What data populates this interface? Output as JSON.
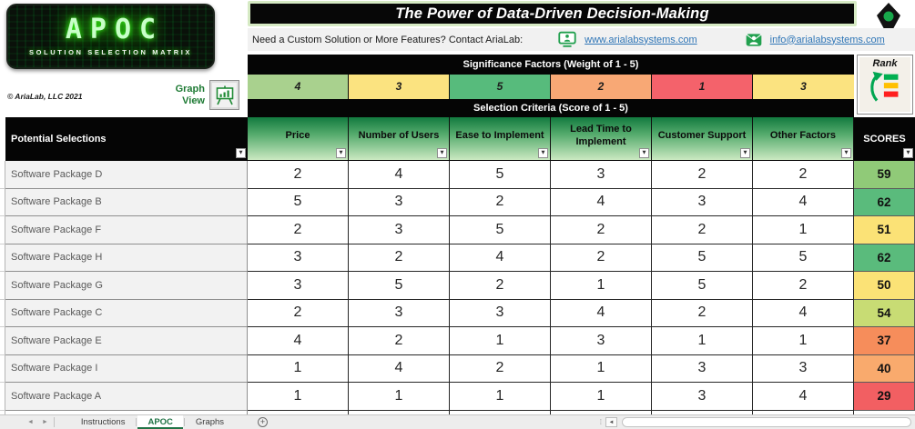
{
  "logo": {
    "title": "APOC",
    "subtitle": "SOLUTION SELECTION MATRIX"
  },
  "copyright": "© AriaLab, LLC 2021",
  "graph_view_label": "Graph View",
  "banner": {
    "title": "The Power of Data-Driven Decision-Making"
  },
  "brand": {
    "name": "AriaLab"
  },
  "contact": {
    "prompt": "Need a Custom Solution or More Features? Contact AriaLab:",
    "website": "www.arialabsystems.com",
    "email": "info@arialabsystems.com"
  },
  "rank_label": "Rank",
  "matrix": {
    "significance_header": "Significance Factors (Weight of 1 - 5)",
    "criteria_header": "Selection Criteria (Score of 1 - 5)",
    "selections_header": "Potential Selections",
    "scores_header": "SCORES",
    "weights": [
      {
        "value": "4",
        "color": "#a9d18e"
      },
      {
        "value": "3",
        "color": "#fbe380"
      },
      {
        "value": "5",
        "color": "#57bb7c"
      },
      {
        "value": "2",
        "color": "#f8a875"
      },
      {
        "value": "1",
        "color": "#f4626b"
      },
      {
        "value": "3",
        "color": "#fbe380"
      }
    ],
    "columns": [
      "Price",
      "Number of Users",
      "Ease to Implement",
      "Lead Time to Implement",
      "Customer Support",
      "Other Factors"
    ],
    "rows": [
      {
        "name": "Software Package D",
        "values": [
          2,
          4,
          5,
          3,
          2,
          2
        ],
        "score": 59,
        "score_color": "#90ca78"
      },
      {
        "name": "Software Package B",
        "values": [
          5,
          3,
          2,
          4,
          3,
          4
        ],
        "score": 62,
        "score_color": "#5abb7c"
      },
      {
        "name": "Software Package F",
        "values": [
          2,
          3,
          5,
          2,
          2,
          1
        ],
        "score": 51,
        "score_color": "#fbe276"
      },
      {
        "name": "Software Package H",
        "values": [
          3,
          2,
          4,
          2,
          5,
          5
        ],
        "score": 62,
        "score_color": "#5abb7c"
      },
      {
        "name": "Software Package G",
        "values": [
          3,
          5,
          2,
          1,
          5,
          2
        ],
        "score": 50,
        "score_color": "#fbe276"
      },
      {
        "name": "Software Package C",
        "values": [
          2,
          3,
          3,
          4,
          2,
          4
        ],
        "score": 54,
        "score_color": "#c8dc74"
      },
      {
        "name": "Software Package E",
        "values": [
          4,
          2,
          1,
          3,
          1,
          1
        ],
        "score": 37,
        "score_color": "#f68d5b"
      },
      {
        "name": "Software Package I",
        "values": [
          1,
          4,
          2,
          1,
          3,
          3
        ],
        "score": 40,
        "score_color": "#f9aa6d"
      },
      {
        "name": "Software Package A",
        "values": [
          1,
          1,
          1,
          1,
          3,
          4
        ],
        "score": 29,
        "score_color": "#f25f62"
      }
    ]
  },
  "sheet_tabs": {
    "tabs": [
      "Instructions",
      "APOC",
      "Graphs"
    ],
    "active": "APOC"
  }
}
